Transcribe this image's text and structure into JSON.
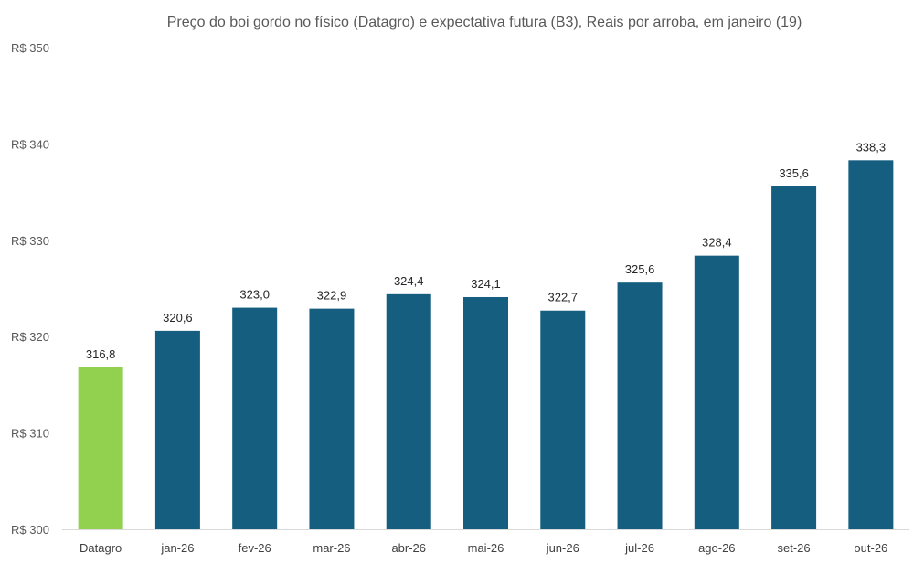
{
  "chart_data": {
    "type": "bar",
    "title": "Preço do boi gordo no físico (Datagro)  e expectativa futura (B3), Reais por arroba, em janeiro (19)",
    "xlabel": "",
    "ylabel": "",
    "categories": [
      "Datagro",
      "jan-26",
      "fev-26",
      "mar-26",
      "abr-26",
      "mai-26",
      "jun-26",
      "jul-26",
      "ago-26",
      "set-26",
      "out-26"
    ],
    "values": [
      316.8,
      320.6,
      323.0,
      322.9,
      324.4,
      324.1,
      322.7,
      325.6,
      328.4,
      335.6,
      338.3
    ],
    "value_labels": [
      "316,8",
      "320,6",
      "323,0",
      "322,9",
      "324,4",
      "324,1",
      "322,7",
      "325,6",
      "328,4",
      "335,6",
      "338,3"
    ],
    "ylim": [
      300,
      350
    ],
    "yticks": [
      300,
      310,
      320,
      330,
      340,
      350
    ],
    "ytick_labels": [
      "R$ 300",
      "R$ 310",
      "R$ 320",
      "R$ 330",
      "R$ 340",
      "R$ 350"
    ],
    "grid": false,
    "colors": {
      "highlight": "#92D050",
      "bar": "#155E80",
      "axis": "#D9D9D9"
    },
    "highlight_index": 0
  }
}
